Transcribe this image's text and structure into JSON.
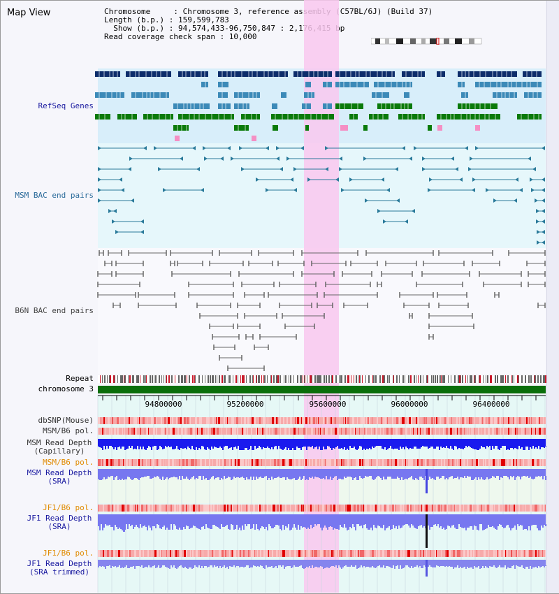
{
  "title": "Map View",
  "header": {
    "chromosome_line": "Chromosome     : Chromosome 3, reference assembly (C57BL/6J) (Build 37)",
    "length_line": "Length (b.p.) : 159,599,783",
    "show_line": "  Show (b.p.) : 94,574,433-96,750,847 : 2,176,415 bp",
    "coverage_line": "Read coverage check span : 10,000"
  },
  "tracks": {
    "refseq": "RefSeq Genes",
    "msm_bac": "MSM BAC end pairs",
    "b6n_bac": "B6N BAC end pairs",
    "repeat": "Repeat",
    "chromosome": "chromosome 3",
    "dbsnp": "dbSNP(Mouse)",
    "msm_b6_pol_1": "MSM/B6 pol.",
    "msm_depth_cap_1": "MSM Read Depth",
    "msm_depth_cap_2": "(Capillary)",
    "msm_b6_pol_2": "MSM/B6 pol.",
    "msm_depth_sra_1": "MSM Read Depth",
    "msm_depth_sra_2": "(SRA)",
    "jf1_b6_pol_1": "JF1/B6 pol.",
    "jf1_depth_sra_1": "JF1 Read Depth",
    "jf1_depth_sra_2": "(SRA)",
    "jf1_b6_pol_2": "JF1/B6 pol.",
    "jf1_depth_trim_1": "JF1 Read Depth",
    "jf1_depth_trim_2": "(SRA trimmed)"
  },
  "axis": {
    "ticks": [
      "94800000",
      "95200000",
      "95600000",
      "96000000",
      "96400000"
    ]
  },
  "colors": {
    "refseq_dark": "#0d2d6b",
    "refseq_mid": "#3c8ab8",
    "refseq_green": "#0a7a0a",
    "bac_msm": "#2a7a9a",
    "bac_b6n": "#666666",
    "chromosome": "#0a6e0a",
    "depth_cap": "#1a1aee",
    "depth_sra": "#7777f0",
    "highlight": "#f9c8ef"
  }
}
